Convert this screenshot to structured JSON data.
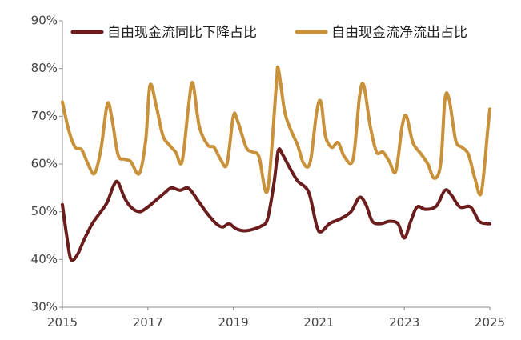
{
  "chart_data": {
    "type": "line",
    "title": "",
    "xlabel": "",
    "ylabel": "",
    "x_ticks": [
      "2015",
      "2017",
      "2019",
      "2021",
      "2023",
      "2025"
    ],
    "y_ticks": [
      "30%",
      "40%",
      "50%",
      "60%",
      "70%",
      "80%",
      "90%"
    ],
    "ylim": [
      30,
      90
    ],
    "xlim": [
      2015,
      2025
    ],
    "grid": false,
    "legend_position": "top",
    "series": [
      {
        "name": "自由现金流同比下降占比",
        "color": "#6b1c1c",
        "points": [
          [
            2015.0,
            51.5
          ],
          [
            2015.1,
            45
          ],
          [
            2015.2,
            40
          ],
          [
            2015.35,
            41
          ],
          [
            2015.5,
            44
          ],
          [
            2015.7,
            47.5
          ],
          [
            2015.9,
            50
          ],
          [
            2016.05,
            52
          ],
          [
            2016.2,
            55.5
          ],
          [
            2016.3,
            56.2
          ],
          [
            2016.45,
            53
          ],
          [
            2016.6,
            51
          ],
          [
            2016.8,
            50
          ],
          [
            2017.0,
            51
          ],
          [
            2017.2,
            52.5
          ],
          [
            2017.4,
            54
          ],
          [
            2017.55,
            55
          ],
          [
            2017.75,
            54.5
          ],
          [
            2017.9,
            55
          ],
          [
            2018.0,
            54.5
          ],
          [
            2018.2,
            52
          ],
          [
            2018.4,
            49.5
          ],
          [
            2018.6,
            47.5
          ],
          [
            2018.75,
            46.8
          ],
          [
            2018.9,
            47.5
          ],
          [
            2019.05,
            46.5
          ],
          [
            2019.25,
            46
          ],
          [
            2019.45,
            46.3
          ],
          [
            2019.65,
            47
          ],
          [
            2019.8,
            48.5
          ],
          [
            2019.95,
            56
          ],
          [
            2020.05,
            62.8
          ],
          [
            2020.15,
            62
          ],
          [
            2020.3,
            59.5
          ],
          [
            2020.5,
            56.5
          ],
          [
            2020.7,
            55
          ],
          [
            2020.8,
            53
          ],
          [
            2020.95,
            47
          ],
          [
            2021.05,
            45.8
          ],
          [
            2021.25,
            47.5
          ],
          [
            2021.5,
            48.5
          ],
          [
            2021.75,
            50
          ],
          [
            2021.95,
            53
          ],
          [
            2022.1,
            51.5
          ],
          [
            2022.25,
            48
          ],
          [
            2022.45,
            47.5
          ],
          [
            2022.65,
            48
          ],
          [
            2022.85,
            47.5
          ],
          [
            2023.0,
            44.5
          ],
          [
            2023.15,
            48
          ],
          [
            2023.3,
            51
          ],
          [
            2023.5,
            50.5
          ],
          [
            2023.75,
            51.2
          ],
          [
            2023.95,
            54.5
          ],
          [
            2024.1,
            53.5
          ],
          [
            2024.3,
            51
          ],
          [
            2024.55,
            51
          ],
          [
            2024.75,
            48
          ],
          [
            2024.95,
            47.5
          ],
          [
            2025.0,
            47.5
          ]
        ]
      },
      {
        "name": "自由现金流净流出占比",
        "color": "#c8913a",
        "points": [
          [
            2015.0,
            73
          ],
          [
            2015.15,
            67
          ],
          [
            2015.3,
            63.5
          ],
          [
            2015.45,
            63
          ],
          [
            2015.6,
            60
          ],
          [
            2015.75,
            58
          ],
          [
            2015.9,
            63
          ],
          [
            2016.05,
            72.5
          ],
          [
            2016.15,
            70
          ],
          [
            2016.3,
            62
          ],
          [
            2016.45,
            61
          ],
          [
            2016.6,
            60.5
          ],
          [
            2016.8,
            58
          ],
          [
            2016.95,
            65
          ],
          [
            2017.05,
            76.5
          ],
          [
            2017.2,
            72
          ],
          [
            2017.35,
            66
          ],
          [
            2017.5,
            64
          ],
          [
            2017.65,
            62.5
          ],
          [
            2017.8,
            60.5
          ],
          [
            2017.95,
            72
          ],
          [
            2018.05,
            77
          ],
          [
            2018.2,
            68
          ],
          [
            2018.4,
            64
          ],
          [
            2018.55,
            63.5
          ],
          [
            2018.7,
            61
          ],
          [
            2018.85,
            60
          ],
          [
            2019.0,
            70
          ],
          [
            2019.1,
            69
          ],
          [
            2019.3,
            63.5
          ],
          [
            2019.45,
            62.5
          ],
          [
            2019.6,
            61.5
          ],
          [
            2019.8,
            54.5
          ],
          [
            2020.0,
            76
          ],
          [
            2020.05,
            80
          ],
          [
            2020.2,
            71
          ],
          [
            2020.35,
            67
          ],
          [
            2020.5,
            64
          ],
          [
            2020.65,
            60
          ],
          [
            2020.8,
            60.5
          ],
          [
            2020.95,
            71
          ],
          [
            2021.05,
            73
          ],
          [
            2021.15,
            66
          ],
          [
            2021.3,
            63.5
          ],
          [
            2021.45,
            64.5
          ],
          [
            2021.6,
            61.5
          ],
          [
            2021.8,
            61
          ],
          [
            2021.95,
            74
          ],
          [
            2022.05,
            76.5
          ],
          [
            2022.2,
            68
          ],
          [
            2022.35,
            62.5
          ],
          [
            2022.5,
            62.5
          ],
          [
            2022.65,
            60.5
          ],
          [
            2022.8,
            58.5
          ],
          [
            2022.95,
            68
          ],
          [
            2023.05,
            70
          ],
          [
            2023.2,
            64.5
          ],
          [
            2023.4,
            62
          ],
          [
            2023.55,
            60
          ],
          [
            2023.7,
            57
          ],
          [
            2023.85,
            60
          ],
          [
            2023.95,
            73.5
          ],
          [
            2024.05,
            73.5
          ],
          [
            2024.2,
            65
          ],
          [
            2024.35,
            63.5
          ],
          [
            2024.5,
            62
          ],
          [
            2024.65,
            57
          ],
          [
            2024.8,
            54
          ],
          [
            2024.95,
            67
          ],
          [
            2025.0,
            71.5
          ]
        ]
      }
    ]
  }
}
